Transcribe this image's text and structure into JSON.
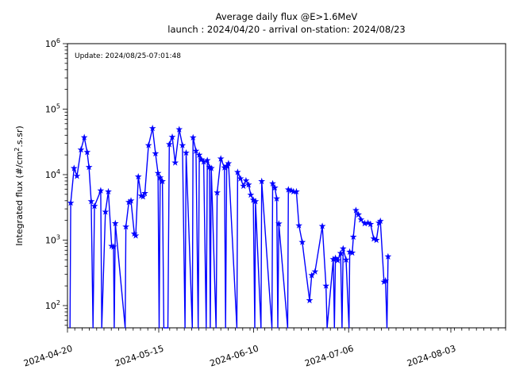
{
  "chart_data": {
    "type": "line",
    "title": "Average daily flux @E>1.6MeV",
    "subtitle": "launch : 2024/04/20 - arrival on-station: 2024/08/23",
    "annotation": "Update: 2024/08/25-07:01:48",
    "xlabel": "",
    "ylabel": "Integrated flux (#/cm2.s.sr)",
    "ylabel_parts": {
      "prefix": "Integrated flux (#/cm",
      "sup": "2",
      "suffix": ".s.sr)"
    },
    "yscale": "log",
    "ylim": [
      50,
      1000000
    ],
    "y_tick_exponents": [
      6,
      5,
      4,
      3,
      2
    ],
    "y_tick_base": "10",
    "x_axis_range_days": [
      0,
      120
    ],
    "x_minor_step_days": 2,
    "x_ticks": [
      {
        "day": 0,
        "label": "2024-04-20"
      },
      {
        "day": 25,
        "label": "2024-05-15"
      },
      {
        "day": 51,
        "label": "2024-06-10"
      },
      {
        "day": 77,
        "label": "2024-07-06"
      },
      {
        "day": 105,
        "label": "2024-08-03"
      }
    ],
    "series_color": "#0000ff",
    "marker": "star",
    "grid": false,
    "legend": "none",
    "points_note": "pairs of [days after 2024-04-20, integrated flux]; 0 flux = data gap, line drops to axis bottom",
    "points": [
      [
        0.7,
        0
      ],
      [
        0.9,
        3700
      ],
      [
        1.8,
        12500
      ],
      [
        2.6,
        9500
      ],
      [
        3.7,
        24000
      ],
      [
        4.6,
        37000
      ],
      [
        5.4,
        22000
      ],
      [
        5.9,
        13000
      ],
      [
        6.5,
        3900
      ],
      [
        7.0,
        0
      ],
      [
        7.4,
        3300
      ],
      [
        9.1,
        5700
      ],
      [
        9.4,
        0
      ],
      [
        10.4,
        2700
      ],
      [
        11.2,
        5500
      ],
      [
        12.1,
        810
      ],
      [
        12.6,
        790
      ],
      [
        12.8,
        0
      ],
      [
        13.1,
        1800
      ],
      [
        15.8,
        0
      ],
      [
        16.0,
        1600
      ],
      [
        16.8,
        3800
      ],
      [
        17.4,
        4000
      ],
      [
        18.3,
        1250
      ],
      [
        18.7,
        1170
      ],
      [
        19.4,
        9300
      ],
      [
        20.2,
        4750
      ],
      [
        20.7,
        4600
      ],
      [
        21.2,
        5200
      ],
      [
        22.2,
        28000
      ],
      [
        23.3,
        51000
      ],
      [
        24.1,
        21000
      ],
      [
        24.8,
        10500
      ],
      [
        25.1,
        0
      ],
      [
        25.4,
        9000
      ],
      [
        26.0,
        7900
      ],
      [
        26.4,
        0
      ],
      [
        27.5,
        0
      ],
      [
        27.9,
        29000
      ],
      [
        28.7,
        37500
      ],
      [
        29.5,
        15200
      ],
      [
        30.6,
        49000
      ],
      [
        31.5,
        28000
      ],
      [
        32.2,
        0
      ],
      [
        32.5,
        21500
      ],
      [
        34.2,
        0
      ],
      [
        34.4,
        36800
      ],
      [
        35.2,
        23000
      ],
      [
        35.8,
        0
      ],
      [
        36.1,
        20000
      ],
      [
        36.7,
        17000
      ],
      [
        37.3,
        15700
      ],
      [
        38.0,
        0
      ],
      [
        38.3,
        16500
      ],
      [
        38.9,
        13000
      ],
      [
        39.1,
        0
      ],
      [
        39.4,
        12500
      ],
      [
        40.7,
        0
      ],
      [
        41.0,
        5300
      ],
      [
        42.0,
        17500
      ],
      [
        43.0,
        12800
      ],
      [
        43.3,
        0
      ],
      [
        43.6,
        13500
      ],
      [
        44.1,
        14800
      ],
      [
        46.4,
        0
      ],
      [
        46.6,
        10900
      ],
      [
        47.4,
        8700
      ],
      [
        48.2,
        6700
      ],
      [
        48.9,
        8100
      ],
      [
        49.6,
        7000
      ],
      [
        50.2,
        4900
      ],
      [
        50.9,
        4100
      ],
      [
        51.3,
        0
      ],
      [
        51.5,
        3900
      ],
      [
        53.0,
        0
      ],
      [
        53.2,
        7900
      ],
      [
        56.0,
        0
      ],
      [
        56.2,
        7300
      ],
      [
        56.8,
        6300
      ],
      [
        57.3,
        4300
      ],
      [
        57.6,
        0
      ],
      [
        57.9,
        1780
      ],
      [
        60.3,
        0
      ],
      [
        60.5,
        5900
      ],
      [
        61.3,
        5700
      ],
      [
        61.9,
        5500
      ],
      [
        62.7,
        5500
      ],
      [
        63.4,
        1670
      ],
      [
        64.3,
        930
      ],
      [
        66.3,
        120
      ],
      [
        66.9,
        290
      ],
      [
        67.8,
        330
      ],
      [
        69.8,
        1630
      ],
      [
        70.8,
        200
      ],
      [
        71.1,
        0
      ],
      [
        72.8,
        510
      ],
      [
        73.1,
        0
      ],
      [
        73.4,
        530
      ],
      [
        74.0,
        490
      ],
      [
        74.8,
        630
      ],
      [
        75.2,
        0
      ],
      [
        75.5,
        740
      ],
      [
        76.3,
        500
      ],
      [
        77.1,
        0
      ],
      [
        77.3,
        660
      ],
      [
        78.0,
        640
      ],
      [
        78.3,
        1120
      ],
      [
        79.0,
        2850
      ],
      [
        79.7,
        2450
      ],
      [
        80.4,
        2050
      ],
      [
        81.4,
        1800
      ],
      [
        82.3,
        1830
      ],
      [
        83.0,
        1750
      ],
      [
        83.9,
        1050
      ],
      [
        84.6,
        1000
      ],
      [
        85.3,
        1830
      ],
      [
        85.7,
        1950
      ],
      [
        86.7,
        230
      ],
      [
        87.1,
        240
      ],
      [
        87.5,
        0
      ],
      [
        87.8,
        560
      ]
    ]
  }
}
